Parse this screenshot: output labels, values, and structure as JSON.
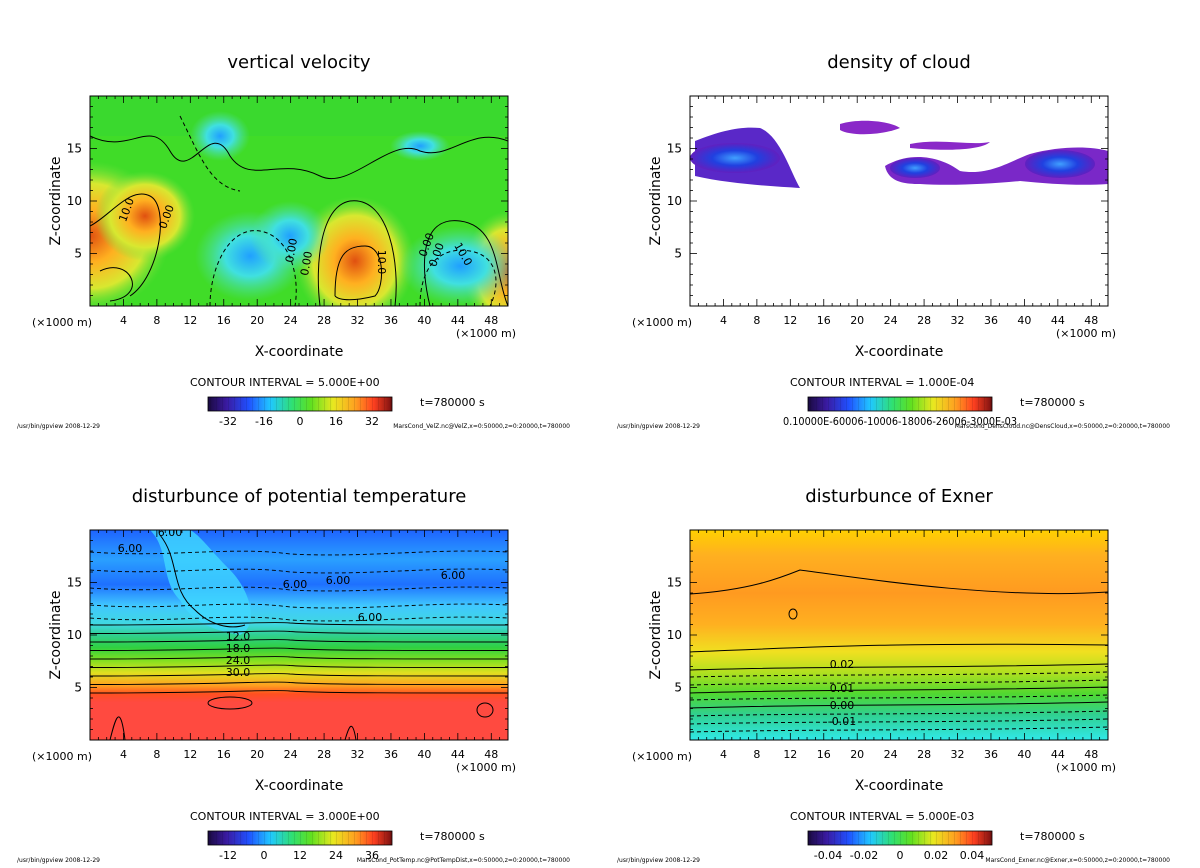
{
  "figure": {
    "common": {
      "xlabel": "X-coordinate",
      "ylabel": "Z-coordinate",
      "x_unit_left": "(×1000 m)",
      "x_unit_right": "(×1000 m)",
      "x_ticks": [
        "4",
        "8",
        "12",
        "16",
        "20",
        "24",
        "28",
        "32",
        "36",
        "40",
        "44",
        "48"
      ],
      "y_ticks": [
        "5",
        "10",
        "15"
      ],
      "time_label": "t=780000 s",
      "footer_left": "/usr/bin/gpview  2008-12-29"
    }
  },
  "chart_data": [
    {
      "type": "heatmap",
      "name": "vertical-velocity",
      "title": "vertical velocity",
      "xlabel": "X-coordinate",
      "ylabel": "Z-coordinate",
      "xlim": [
        0,
        50
      ],
      "ylim": [
        0,
        20
      ],
      "contour_interval": "CONTOUR INTERVAL = 5.000E+00",
      "colorbar_ticks": [
        "-32",
        "-16",
        "0",
        "16",
        "32"
      ],
      "contour_labels": [
        "10.0",
        "0.00",
        "0.00",
        "0.00",
        "0.00",
        "0.00",
        "10.0",
        "10.0"
      ],
      "time_label": "t=780000 s",
      "footer_right": "MarsCond_VelZ.nc@VelZ,x=0:50000,z=0:20000,t=780000"
    },
    {
      "type": "heatmap",
      "name": "density-of-cloud",
      "title": "density of cloud",
      "xlabel": "X-coordinate",
      "ylabel": "Z-coordinate",
      "xlim": [
        0,
        50
      ],
      "ylim": [
        0,
        20
      ],
      "contour_interval": "CONTOUR INTERVAL = 1.000E-04",
      "colorbar_ticks_text": "0.10000E-60006-10006-18006-26006-3000E-03",
      "time_label": "t=780000 s",
      "footer_right": "MarsCond_DensCloud.nc@DensCloud,x=0:50000,z=0:20000,t=780000"
    },
    {
      "type": "heatmap",
      "name": "disturbance-of-potential-temperature",
      "title": "disturbunce of potential temperature",
      "xlabel": "X-coordinate",
      "ylabel": "Z-coordinate",
      "xlim": [
        0,
        50
      ],
      "ylim": [
        0,
        20
      ],
      "contour_interval": "CONTOUR INTERVAL = 3.000E+00",
      "colorbar_ticks": [
        "-12",
        "0",
        "12",
        "24",
        "36"
      ],
      "contour_labels": [
        "6.00",
        "6.00",
        "6.00",
        "6.00",
        "6.00",
        "6.00",
        "12.0",
        "18.0",
        "24.0",
        "30.0"
      ],
      "time_label": "t=780000 s",
      "footer_right": "MarsCond_PotTemp.nc@PotTempDist,x=0:50000,z=0:20000,t=780000"
    },
    {
      "type": "heatmap",
      "name": "disturbance-of-exner",
      "title": "disturbunce of Exner",
      "xlabel": "X-coordinate",
      "ylabel": "Z-coordinate",
      "xlim": [
        0,
        50
      ],
      "ylim": [
        0,
        20
      ],
      "contour_interval": "CONTOUR INTERVAL = 5.000E-03",
      "colorbar_ticks": [
        "-0.04",
        "-0.02",
        "0",
        "0.02",
        "0.04"
      ],
      "contour_labels": [
        "0.02",
        "0.01",
        "0.00",
        "-0.01"
      ],
      "time_label": "t=780000 s",
      "footer_right": "MarsCond_Exner.nc@Exner,x=0:50000,z=0:20000,t=780000"
    }
  ]
}
